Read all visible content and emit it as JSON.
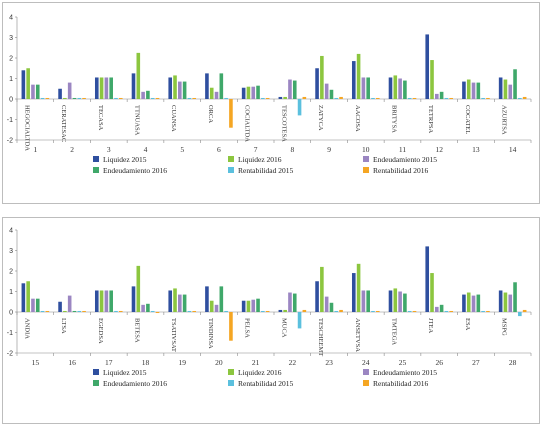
{
  "colors": [
    "#2f4f9f",
    "#8cc63f",
    "#9b86c2",
    "#3fa86a",
    "#5bc0de",
    "#f5a623"
  ],
  "chart_data": [
    {
      "type": "bar",
      "categories": [
        "HEGOCIALTDA",
        "CERATESAC",
        "TECASA",
        "TTNUASA",
        "CUANSA",
        "ORCA",
        "COCIALTDA",
        "TESCOTESA",
        "ZATYCA",
        "AACOSA",
        "BRITYSA",
        "TETRPSA",
        "COCATEL",
        "AZURTSA"
      ],
      "numbers": [
        "1",
        "2",
        "3",
        "4",
        "5",
        "6",
        "7",
        "8",
        "9",
        "10",
        "11",
        "12",
        "13",
        "14"
      ],
      "series": [
        {
          "name": "Liquidez 2015",
          "values": [
            1.4,
            0.5,
            1.05,
            1.25,
            1.05,
            1.25,
            0.55,
            0.1,
            1.5,
            1.85,
            1.05,
            3.15,
            0.85,
            1.05
          ]
        },
        {
          "name": "Liquidez 2016",
          "values": [
            1.5,
            0.05,
            1.05,
            2.25,
            1.15,
            0.55,
            0.6,
            0.1,
            2.1,
            2.2,
            1.15,
            1.9,
            0.95,
            0.95
          ]
        },
        {
          "name": "Endeudamiento 2015",
          "values": [
            0.7,
            0.8,
            1.05,
            0.35,
            0.85,
            0.35,
            0.6,
            0.95,
            0.75,
            1.05,
            1.0,
            0.25,
            0.8,
            0.7
          ]
        },
        {
          "name": "Endeudamiento 2016",
          "values": [
            0.7,
            0.05,
            1.05,
            0.4,
            0.85,
            1.25,
            0.65,
            0.9,
            0.45,
            1.05,
            0.9,
            0.35,
            0.8,
            1.45
          ]
        },
        {
          "name": "Rentabilidad 2015",
          "values": [
            0.05,
            0.05,
            0.05,
            0.05,
            0.05,
            0.05,
            0.05,
            -0.8,
            0.05,
            0.05,
            0.05,
            0.05,
            0.05,
            0.05
          ]
        },
        {
          "name": "Rentabilidad 2016",
          "values": [
            0.05,
            0.05,
            0.05,
            0.05,
            0.05,
            -1.4,
            0.05,
            0.1,
            0.1,
            0.05,
            0.05,
            0.05,
            0.05,
            0.1
          ]
        }
      ],
      "ylim": [
        -2,
        4
      ],
      "yticks": [
        "4",
        "3",
        "2",
        "1",
        "0",
        "-1",
        "-2"
      ],
      "legend": [
        "Liquidez 2015",
        "Liquidez 2016",
        "Endeudamiento 2015",
        "Endeudamiento 2016",
        "Rentabilidad 2015",
        "Rentabilidad 2016"
      ]
    },
    {
      "type": "bar",
      "categories": [
        "ANDIA",
        "LTSA",
        "EGEDSA",
        "BETESA",
        "TSATIVSAT",
        "TINDINSA",
        "PELSA",
        "MUCA",
        "TESCHEEMT",
        "ANSETVSA",
        "TMTEGA",
        "JTEA",
        "ESA",
        "MSPG"
      ],
      "numbers": [
        "15",
        "16",
        "17",
        "18",
        "19",
        "20",
        "21",
        "22",
        "23",
        "24",
        "25",
        "26",
        "27",
        "28"
      ],
      "series": [
        {
          "name": "Liquidez 2015",
          "values": [
            1.4,
            0.5,
            1.05,
            1.25,
            1.05,
            1.25,
            0.55,
            0.1,
            1.5,
            1.9,
            1.05,
            3.2,
            0.85,
            1.05
          ]
        },
        {
          "name": "Liquidez 2016",
          "values": [
            1.5,
            0.05,
            1.05,
            2.25,
            1.15,
            0.55,
            0.55,
            0.1,
            2.2,
            2.35,
            1.15,
            1.9,
            0.95,
            0.95
          ]
        },
        {
          "name": "Endeudamiento 2015",
          "values": [
            0.65,
            0.8,
            1.05,
            0.35,
            0.85,
            0.35,
            0.6,
            0.95,
            0.75,
            1.05,
            1.0,
            0.25,
            0.8,
            0.85
          ]
        },
        {
          "name": "Endeudamiento 2016",
          "values": [
            0.65,
            0.05,
            1.05,
            0.4,
            0.85,
            1.25,
            0.65,
            0.9,
            0.45,
            1.05,
            0.9,
            0.35,
            0.85,
            1.45
          ]
        },
        {
          "name": "Rentabilidad 2015",
          "values": [
            0.05,
            0.05,
            0.05,
            0.05,
            0.05,
            0.05,
            0.05,
            -0.8,
            0.05,
            0.05,
            0.05,
            0.05,
            0.05,
            -0.2
          ]
        },
        {
          "name": "Rentabilidad 2016",
          "values": [
            0.05,
            0.05,
            0.05,
            -0.05,
            0.05,
            -1.4,
            0.05,
            0.1,
            0.1,
            0.05,
            0.05,
            0.05,
            0.05,
            0.1
          ]
        }
      ],
      "ylim": [
        -2,
        4
      ],
      "yticks": [
        "4",
        "3",
        "2",
        "1",
        "0",
        "-1",
        "-2"
      ],
      "legend": [
        "Liquidez 2015",
        "Liquidez 2016",
        "Endeudamiento 2015",
        "Endeudamiento 2016",
        "Rentabilidad 2015",
        "Rentabilidad 2016"
      ]
    }
  ]
}
